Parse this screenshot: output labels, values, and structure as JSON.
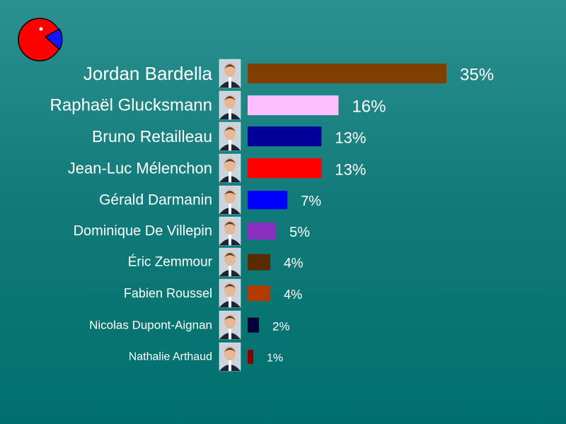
{
  "logo": {
    "icon": "pacman-pie-logo-icon",
    "colors": {
      "body": "#ff0000",
      "wedge": "#1414ff",
      "eye": "#ffffff"
    }
  },
  "chart_data": {
    "type": "bar",
    "orientation": "horizontal",
    "categories": [
      "Jordan Bardella",
      "Raphaël Glucksmann",
      "Bruno Retailleau",
      "Jean-Luc Mélenchon",
      "Gérald Darmanin",
      "Dominique De Villepin",
      "Éric Zemmour",
      "Fabien Roussel",
      "Nicolas Dupont-Aignan",
      "Nathalie Arthaud"
    ],
    "values": [
      35,
      16,
      13,
      13,
      7,
      5,
      4,
      4,
      2,
      1
    ],
    "value_labels": [
      "35%",
      "16%",
      "13%",
      "13%",
      "7%",
      "5%",
      "4%",
      "4%",
      "2%",
      "1%"
    ],
    "colors": [
      "#7f3f00",
      "#ffbfff",
      "#000099",
      "#ff0000",
      "#0000ff",
      "#8a2fbf",
      "#5a2a00",
      "#b33a00",
      "#00003a",
      "#880000"
    ],
    "xlim": [
      0,
      35
    ],
    "grid": false,
    "legend": "none",
    "title": "",
    "xlabel": "",
    "ylabel": ""
  }
}
